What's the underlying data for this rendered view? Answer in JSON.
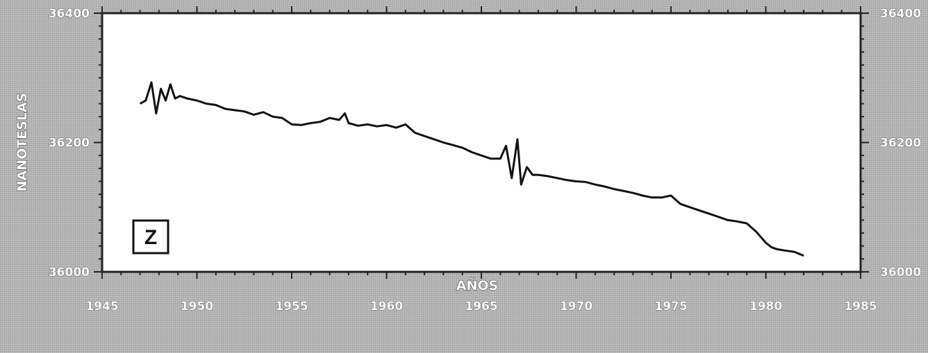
{
  "chart_data": {
    "type": "line",
    "title": "",
    "xlabel": "AÑOS",
    "ylabel": "NANOTESLAS",
    "xlim": [
      1945,
      1985
    ],
    "ylim": [
      36000,
      36400
    ],
    "x_ticks": [
      "1945",
      "1950",
      "1955",
      "1960",
      "1965",
      "1970",
      "1975",
      "1980",
      "1985"
    ],
    "y_ticks": [
      "36000",
      "36200",
      "36400"
    ],
    "y_ticks_right": [
      "36000",
      "36200",
      "36400"
    ],
    "panel_label": "Z",
    "grid": false,
    "line_color": "#111111",
    "series": [
      {
        "x": [
          1947.0,
          1947.3,
          1947.6,
          1947.85,
          1948.1,
          1948.35,
          1948.6,
          1948.85,
          1949.1,
          1949.5,
          1950.0,
          1950.5,
          1951.0,
          1951.5,
          1952.0,
          1952.5,
          1953.0,
          1953.5,
          1954.0,
          1954.5,
          1955.0,
          1955.5,
          1956.0,
          1956.5,
          1957.0,
          1957.5,
          1957.8,
          1958.0,
          1958.5,
          1959.0,
          1959.5,
          1960.0,
          1960.5,
          1961.0,
          1961.5,
          1962.0,
          1962.5,
          1963.0,
          1963.5,
          1964.0,
          1964.5,
          1965.0,
          1965.5,
          1966.0,
          1966.3,
          1966.6,
          1966.9,
          1967.1,
          1967.4,
          1967.7,
          1968.0,
          1968.5,
          1969.0,
          1969.5,
          1970.0,
          1970.5,
          1971.0,
          1971.5,
          1972.0,
          1972.5,
          1973.0,
          1973.5,
          1974.0,
          1974.5,
          1975.0,
          1975.5,
          1976.0,
          1976.5,
          1977.0,
          1977.5,
          1978.0,
          1978.5,
          1979.0,
          1979.5,
          1980.0,
          1980.3,
          1980.6,
          1981.0,
          1981.5,
          1982.0
        ],
        "y": [
          36260,
          36265,
          36293,
          36245,
          36283,
          36265,
          36290,
          36268,
          36272,
          36268,
          36265,
          36260,
          36258,
          36252,
          36250,
          36248,
          36243,
          36247,
          36240,
          36238,
          36228,
          36227,
          36230,
          36232,
          36238,
          36235,
          36245,
          36230,
          36226,
          36228,
          36225,
          36227,
          36223,
          36228,
          36215,
          36210,
          36205,
          36200,
          36196,
          36192,
          36185,
          36180,
          36175,
          36175,
          36195,
          36145,
          36205,
          36135,
          36162,
          36150,
          36150,
          36148,
          36145,
          36142,
          36140,
          36139,
          36135,
          36132,
          36128,
          36125,
          36122,
          36118,
          36115,
          36115,
          36118,
          36105,
          36100,
          36095,
          36090,
          36085,
          36080,
          36078,
          36075,
          36062,
          36045,
          36038,
          36035,
          36033,
          36031,
          36025
        ]
      }
    ]
  }
}
